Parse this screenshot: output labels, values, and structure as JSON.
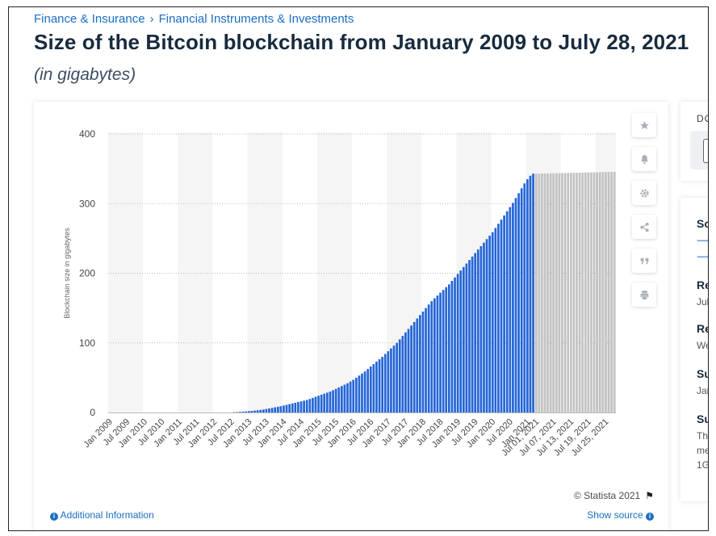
{
  "breadcrumb": {
    "items": [
      "Finance & Insurance",
      "Financial Instruments & Investments"
    ],
    "separator": "›"
  },
  "page_title": "Size of the Bitcoin blockchain from January 2009 to July 28, 2021",
  "page_subtitle": "(in gigabytes)",
  "toolbar": {
    "icons": [
      "star-icon",
      "bell-icon",
      "gear-icon",
      "share-icon",
      "quote-icon",
      "print-icon"
    ]
  },
  "footer": {
    "copyright": "© Statista 2021",
    "additional_info": "Additional Information",
    "show_source": "Show source"
  },
  "side_panel": {
    "download_label": "DO",
    "headings": [
      "So",
      "Re",
      "Re",
      "Su",
      "Su"
    ],
    "values": [
      "Jul",
      "We",
      "Jan",
      "Th",
      "me",
      "1G"
    ]
  },
  "colors": {
    "monthly_bar": "#2566d8",
    "daily_bar": "#c2c2c2",
    "band": "#f5f5f5",
    "gridline": "#bbbbbb"
  },
  "chart_data": {
    "type": "bar",
    "title": "",
    "xlabel": "",
    "ylabel": "Blockchain size in gigabytes",
    "ylim": [
      0,
      400
    ],
    "yticks": [
      0,
      100,
      200,
      300,
      400
    ],
    "grid": true,
    "xtick_labels": [
      "Jan 2009",
      "Jul 2009",
      "Jan 2010",
      "Jul 2010",
      "Jan 2011",
      "Jul 2011",
      "Jan 2012",
      "Jul 2012",
      "Jan 2013",
      "Jul 2013",
      "Jan 2014",
      "Jul 2014",
      "Jan 2015",
      "Jul 2015",
      "Jan 2016",
      "Jul 2016",
      "Jan 2017",
      "Jul 2017",
      "Jan 2018",
      "Jul 2018",
      "Jan 2019",
      "Jul 2019",
      "Jan 2020",
      "Jul 2020",
      "Jan 2021",
      "Jul 01, 2021",
      "Jul 07, 2021",
      "Jul 13, 2021",
      "Jul 19, 2021",
      "Jul 25, 2021"
    ],
    "series": [
      {
        "name": "",
        "values": [
          0,
          0,
          0,
          0,
          0,
          0,
          0,
          0,
          0,
          0,
          0,
          0,
          0,
          0,
          0,
          0,
          0,
          0,
          0,
          0,
          0,
          0,
          0,
          0,
          0,
          0,
          0,
          0,
          0,
          0,
          0,
          0,
          0,
          0,
          0,
          0,
          0,
          0,
          0,
          0,
          0,
          0,
          0,
          0.5,
          0.7,
          1,
          1.3,
          1.6,
          2,
          2.3,
          2.7,
          3.2,
          3.7,
          4.3,
          5,
          5.8,
          6.6,
          7.4,
          8.2,
          9,
          10,
          11,
          12,
          13,
          14,
          15,
          16,
          17,
          18,
          19.5,
          21,
          22.5,
          24,
          25.5,
          27,
          28.5,
          30,
          32,
          34,
          36,
          38,
          40,
          42,
          44.5,
          47,
          50,
          53,
          56,
          59,
          62.5,
          66,
          69.5,
          73,
          76.5,
          80,
          84,
          88,
          92,
          96,
          100,
          105,
          110,
          115,
          120,
          125,
          130,
          135,
          140,
          145,
          150,
          155,
          160,
          164,
          168,
          172,
          176,
          180,
          184,
          189,
          194,
          199,
          204,
          209,
          214,
          219,
          224,
          229,
          234,
          239,
          244,
          249,
          254,
          259,
          265,
          271,
          277,
          283,
          289,
          295,
          301,
          308,
          315,
          322,
          329,
          335,
          340,
          343
        ],
        "color": "#2566d8"
      },
      {
        "name": "",
        "values": [
          343,
          343.1,
          343.2,
          343.3,
          343.4,
          343.5,
          343.6,
          343.7,
          343.8,
          343.9,
          344,
          344.1,
          344.2,
          344.3,
          344.4,
          344.5,
          344.6,
          344.7,
          344.8,
          344.9,
          345,
          345.1,
          345.2,
          345.3,
          345.4,
          345.5,
          345.6,
          345.7
        ],
        "color": "#c2c2c2"
      }
    ]
  }
}
